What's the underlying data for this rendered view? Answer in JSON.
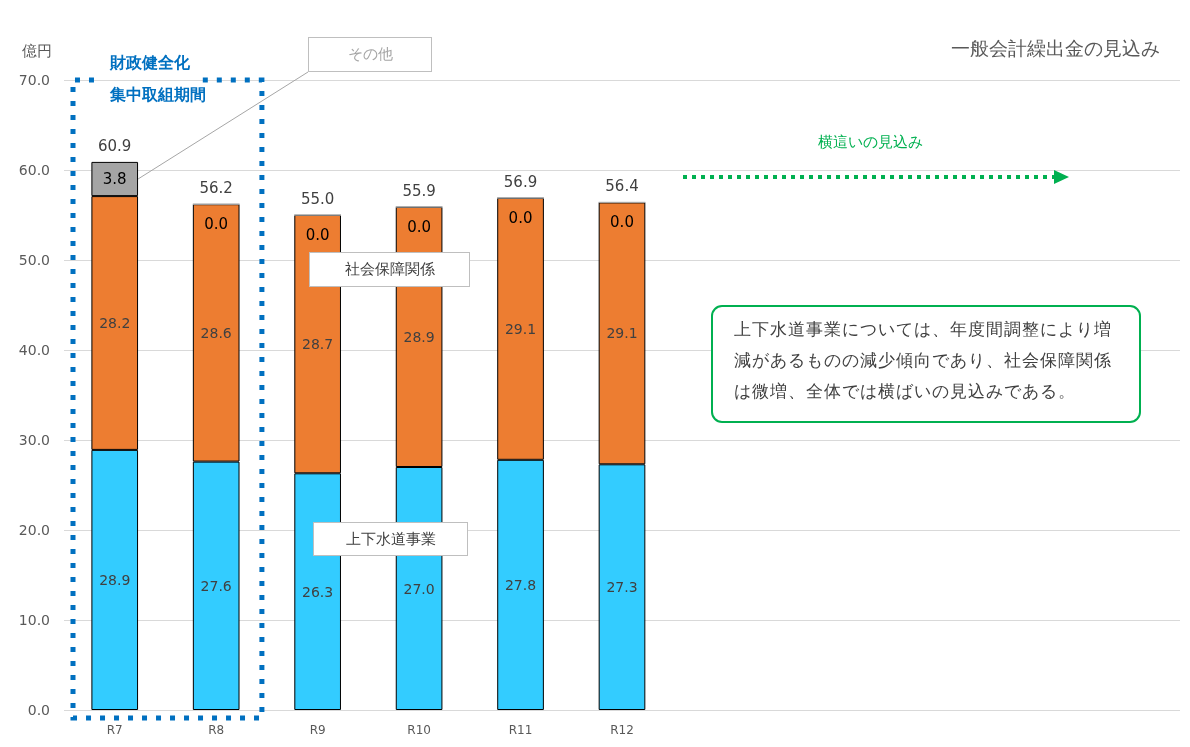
{
  "chart_data": {
    "type": "bar",
    "stacked": true,
    "title": "一般会計繰出金の見込み",
    "ylabel": "億円",
    "categories": [
      "R7",
      "R8",
      "R9",
      "R10",
      "R11",
      "R12",
      null,
      null,
      null,
      null,
      null
    ],
    "series": [
      {
        "name": "上下水道事業",
        "color": "#33ccff",
        "values": [
          28.9,
          27.6,
          26.3,
          27.0,
          27.8,
          27.3,
          null,
          null,
          null,
          null,
          null
        ],
        "value_labels": [
          "28.9",
          "27.6",
          "26.3",
          "27.0",
          "27.8",
          "27.3",
          null,
          null,
          null,
          null,
          null
        ]
      },
      {
        "name": "社会保障関係",
        "color": "#ed7d31",
        "values": [
          28.2,
          28.6,
          28.7,
          28.9,
          29.1,
          29.1,
          null,
          null,
          null,
          null,
          null
        ],
        "value_labels": [
          "28.2",
          "28.6",
          "28.7",
          "28.9",
          "29.1",
          "29.1",
          null,
          null,
          null,
          null,
          null
        ]
      },
      {
        "name": "その他",
        "color": "#a5a5a5",
        "values": [
          3.8,
          0.0,
          0.0,
          0.0,
          0.0,
          0.0,
          null,
          null,
          null,
          null,
          null
        ],
        "value_labels": [
          "3.8",
          "0.0",
          "0.0",
          "0.0",
          "0.0",
          "0.0",
          null,
          null,
          null,
          null,
          null
        ]
      }
    ],
    "totals": [
      "60.9",
      "56.2",
      "55.0",
      "55.9",
      "56.9",
      "56.4",
      null,
      null,
      null,
      null,
      null
    ],
    "ylim": [
      0,
      70
    ],
    "yticks": [
      {
        "value": 0,
        "label": "0.0"
      },
      {
        "value": 10,
        "label": "10.0"
      },
      {
        "value": 20,
        "label": "20.0"
      },
      {
        "value": 30,
        "label": "30.0"
      },
      {
        "value": 40,
        "label": "40.0"
      },
      {
        "value": 50,
        "label": "50.0"
      },
      {
        "value": 60,
        "label": "60.0"
      },
      {
        "value": 70,
        "label": "70.0"
      }
    ],
    "grid": "y",
    "annotations": [
      "財政健全化集中取組期間",
      "横這いの見込み",
      "上下水道事業については、年度間調整により増減があるものの減少傾向であり、社会保障関係は微増、全体では横ばいの見込みである。"
    ]
  }
}
